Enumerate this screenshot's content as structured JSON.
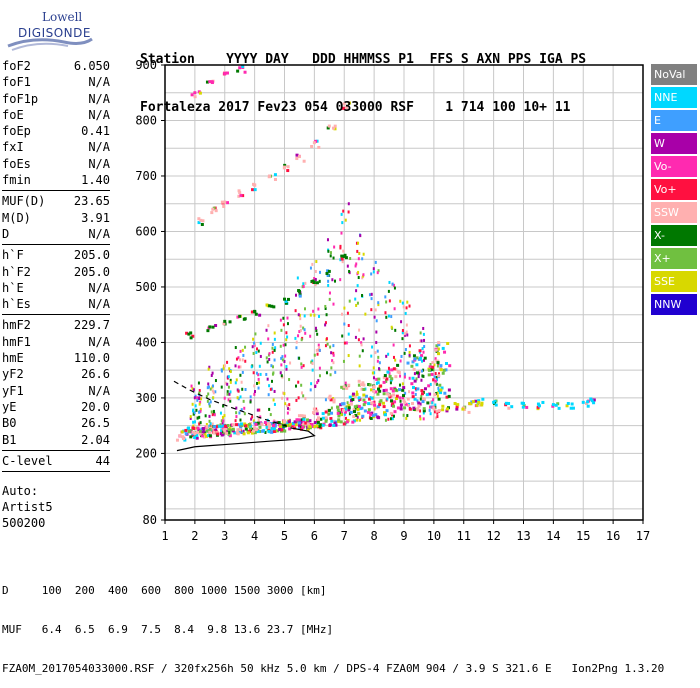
{
  "logo": {
    "line1": "Lowell",
    "line2": "DIGISONDE"
  },
  "header": {
    "labels": "Station    YYYY DAY   DDD HHMMSS P1  FFS S AXN PPS IGA PS",
    "values": "Fortaleza 2017 Fev23 054 033000 RSF    1 714 100 10+ 11"
  },
  "params_group1": [
    {
      "name": "foF2",
      "value": "6.050"
    },
    {
      "name": "foF1",
      "value": "N/A"
    },
    {
      "name": "foF1p",
      "value": "N/A"
    },
    {
      "name": "foE",
      "value": "N/A"
    },
    {
      "name": "foEp",
      "value": "0.41"
    },
    {
      "name": "fxI",
      "value": "N/A"
    },
    {
      "name": "foEs",
      "value": "N/A"
    },
    {
      "name": "fmin",
      "value": "1.40"
    }
  ],
  "params_group2": [
    {
      "name": "MUF(D)",
      "value": "23.65"
    },
    {
      "name": "M(D)",
      "value": "3.91"
    },
    {
      "name": "D",
      "value": "N/A"
    }
  ],
  "params_group3": [
    {
      "name": "h`F",
      "value": "205.0"
    },
    {
      "name": "h`F2",
      "value": "205.0"
    },
    {
      "name": "h`E",
      "value": "N/A"
    },
    {
      "name": "h`Es",
      "value": "N/A"
    }
  ],
  "params_group4": [
    {
      "name": "hmF2",
      "value": "229.7"
    },
    {
      "name": "hmF1",
      "value": "N/A"
    },
    {
      "name": "hmE",
      "value": "110.0"
    },
    {
      "name": "yF2",
      "value": "26.6"
    },
    {
      "name": "yF1",
      "value": "N/A"
    },
    {
      "name": "yE",
      "value": "20.0"
    },
    {
      "name": "B0",
      "value": "26.5"
    },
    {
      "name": "B1",
      "value": "2.04"
    }
  ],
  "params_group5": [
    {
      "name": "C-level",
      "value": "44"
    }
  ],
  "auto_info": {
    "line1": "Auto:",
    "line2": "Artist5",
    "line3": "500200"
  },
  "legend": [
    {
      "label": "NoVal",
      "color": "#808080"
    },
    {
      "label": "NNE",
      "color": "#00d8ff"
    },
    {
      "label": "E",
      "color": "#3f9fff"
    },
    {
      "label": "W",
      "color": "#a800a8"
    },
    {
      "label": "Vo-",
      "color": "#ff2ab0"
    },
    {
      "label": "Vo+",
      "color": "#ff1040"
    },
    {
      "label": "SSW",
      "color": "#ffb0b0"
    },
    {
      "label": "X-",
      "color": "#007800"
    },
    {
      "label": "X+",
      "color": "#70c040"
    },
    {
      "label": "SSE",
      "color": "#d8d800"
    },
    {
      "label": "NNW",
      "color": "#2000d0"
    }
  ],
  "footer": {
    "line1": "D     100  200  400  600  800 1000 1500 3000 [km]",
    "line2": "MUF   6.4  6.5  6.9  7.5  8.4  9.8 13.6 23.7 [MHz]",
    "line3": "FZA0M_2017054033000.RSF / 320fx256h 50 kHz 5.0 km / DPS-4 FZA0M 904 / 3.9 S 321.6 E   Ion2Png 1.3.20"
  },
  "chart_data": {
    "type": "scatter",
    "title": "",
    "xlabel": "",
    "ylabel": "",
    "xlim": [
      1,
      17
    ],
    "ylim": [
      80,
      900
    ],
    "x_ticks": [
      1,
      2,
      3,
      4,
      5,
      6,
      7,
      8,
      9,
      10,
      11,
      12,
      13,
      14,
      15,
      16,
      17
    ],
    "y_ticks": [
      80,
      200,
      300,
      400,
      500,
      600,
      700,
      800,
      900
    ],
    "grid": true,
    "traces": [
      {
        "name": "O-trace (F2 1st hop)",
        "color_key": "SSW",
        "points": [
          [
            1.5,
            232
          ],
          [
            2,
            236
          ],
          [
            2.5,
            238
          ],
          [
            3,
            240
          ],
          [
            3.5,
            243
          ],
          [
            4,
            246
          ],
          [
            4.5,
            252
          ],
          [
            5,
            258
          ],
          [
            5.5,
            268
          ],
          [
            6,
            280
          ],
          [
            6.5,
            300
          ],
          [
            7,
            320
          ],
          [
            7.5,
            330
          ],
          [
            8,
            320
          ],
          [
            8.5,
            305
          ],
          [
            9,
            295
          ],
          [
            9.5,
            285
          ],
          [
            10,
            282
          ],
          [
            11,
            282
          ]
        ]
      },
      {
        "name": "2nd hop",
        "color_key": "X-",
        "points": [
          [
            1.8,
            415
          ],
          [
            2.5,
            428
          ],
          [
            3,
            438
          ],
          [
            3.5,
            447
          ],
          [
            4,
            456
          ],
          [
            4.5,
            466
          ],
          [
            5,
            478
          ],
          [
            5.5,
            492
          ],
          [
            6,
            508
          ],
          [
            6.5,
            528
          ],
          [
            7,
            555
          ]
        ]
      },
      {
        "name": "3rd hop",
        "color_key": "SSW",
        "points": [
          [
            2.2,
            620
          ],
          [
            2.6,
            640
          ],
          [
            3,
            653
          ],
          [
            3.5,
            670
          ],
          [
            4,
            684
          ],
          [
            4.5,
            700
          ],
          [
            5,
            716
          ],
          [
            5.5,
            735
          ],
          [
            6,
            760
          ],
          [
            6.5,
            790
          ],
          [
            7,
            830
          ]
        ]
      },
      {
        "name": "4th hop",
        "color_key": "Vo-",
        "points": [
          [
            2,
            850
          ],
          [
            2.5,
            870
          ],
          [
            3,
            885
          ],
          [
            3.5,
            895
          ]
        ]
      },
      {
        "name": "NNE echoes",
        "color_key": "NNE",
        "points": [
          [
            11.5,
            295
          ],
          [
            12,
            292
          ],
          [
            12.5,
            290
          ],
          [
            13,
            290
          ],
          [
            13.5,
            289
          ],
          [
            14,
            288
          ],
          [
            14.5,
            290
          ],
          [
            15,
            292
          ],
          [
            15.3,
            295
          ]
        ]
      },
      {
        "name": "SSE echoes",
        "color_key": "SSE",
        "points": [
          [
            10.3,
            285
          ],
          [
            10.8,
            288
          ],
          [
            11.2,
            290
          ],
          [
            11.5,
            292
          ]
        ]
      }
    ],
    "profile_curve": {
      "name": "electron density profile",
      "points": [
        [
          1.4,
          205
        ],
        [
          2,
          212
        ],
        [
          2.5,
          214
        ],
        [
          3,
          216
        ],
        [
          3.5,
          218
        ],
        [
          4,
          220
        ],
        [
          4.5,
          222
        ],
        [
          5,
          224
        ],
        [
          5.5,
          226
        ],
        [
          6,
          232
        ],
        [
          5.8,
          240
        ],
        [
          5.2,
          246
        ]
      ]
    },
    "dashed_curve": {
      "name": "model profile",
      "points": [
        [
          1.3,
          330
        ],
        [
          1.8,
          315
        ],
        [
          2.5,
          297
        ],
        [
          3.2,
          283
        ],
        [
          3.8,
          272
        ],
        [
          4.3,
          262
        ],
        [
          4.8,
          254
        ],
        [
          5.2,
          247
        ]
      ]
    }
  }
}
